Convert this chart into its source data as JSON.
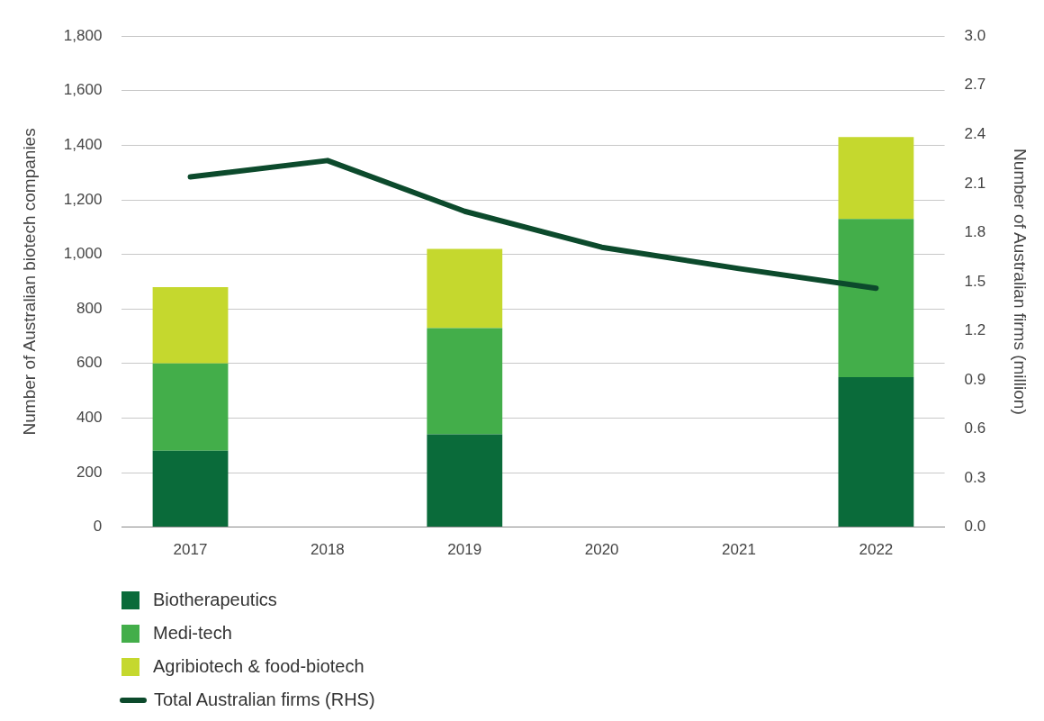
{
  "chart_data": {
    "type": "bar",
    "stacked": true,
    "categories": [
      "2017",
      "2018",
      "2019",
      "2020",
      "2021",
      "2022"
    ],
    "series": [
      {
        "name": "Biotherapeutics",
        "color": "#0a6b3a",
        "values": [
          280,
          null,
          340,
          null,
          null,
          550
        ]
      },
      {
        "name": "Medi-tech",
        "color": "#43ae4a",
        "values": [
          320,
          null,
          390,
          null,
          null,
          580
        ]
      },
      {
        "name": "Agribiotech & food-biotech",
        "color": "#c5d82e",
        "values": [
          280,
          null,
          290,
          null,
          null,
          300
        ]
      },
      {
        "name": "Total Australian firms (RHS)",
        "type": "line",
        "axis": "y2",
        "color": "#0c4a2c",
        "values": [
          2.14,
          2.24,
          1.93,
          1.71,
          1.58,
          1.46
        ]
      }
    ],
    "ylabel": "Number of Australian biotech companies",
    "y2label": "Number of Australian firms (million)",
    "ylim": [
      0,
      1800
    ],
    "yticks": [
      0,
      {
        "value": 200,
        "label": "200"
      },
      {
        "value": 400,
        "label": "400"
      },
      {
        "value": 600,
        "label": "600"
      },
      {
        "value": 800,
        "label": "800"
      },
      {
        "value": 1000,
        "label": "1,000"
      },
      {
        "value": 1200,
        "label": "1,200"
      },
      {
        "value": 1400,
        "label": "1,400"
      },
      {
        "value": 1600,
        "label": "1,600"
      },
      {
        "value": 1800,
        "label": "1,800"
      }
    ],
    "y2lim": [
      0,
      3
    ],
    "y2ticks": [
      {
        "value": 0,
        "label": "0.0"
      },
      {
        "value": 0.3,
        "label": "0.3"
      },
      {
        "value": 0.6,
        "label": "0.6"
      },
      {
        "value": 0.9,
        "label": "0.9"
      },
      {
        "value": 1.2,
        "label": "1.2"
      },
      {
        "value": 1.5,
        "label": "1.5"
      },
      {
        "value": 1.8,
        "label": "1.8"
      },
      {
        "value": 2.1,
        "label": "2.1"
      },
      {
        "value": 2.4,
        "label": "2.4"
      },
      {
        "value": 2.7,
        "label": "2.7"
      },
      {
        "value": 3,
        "label": "3.0"
      }
    ],
    "grid": "y",
    "legend": "bottom",
    "marker": "none"
  }
}
